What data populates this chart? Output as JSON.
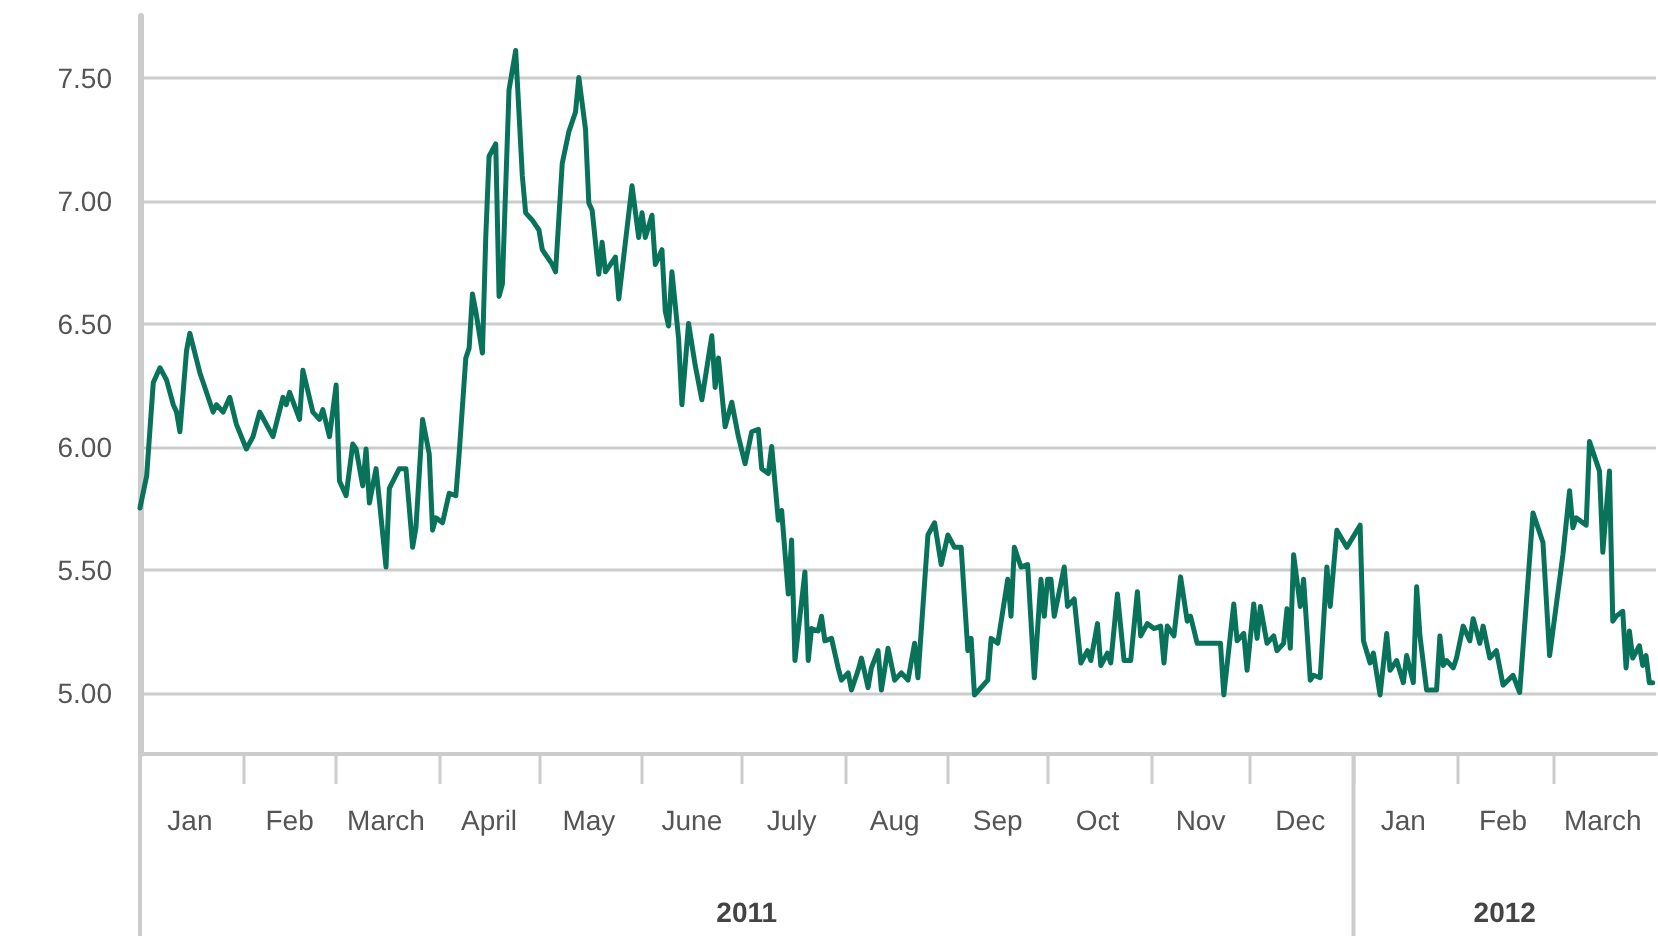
{
  "chart_data": {
    "type": "line",
    "marker": "none",
    "line_style": "solid",
    "grid": "y",
    "xlim": [
      "2011-01-01",
      "2012-04-01"
    ],
    "ylim": [
      4.75,
      7.75
    ],
    "yticks": [
      {
        "value": 5,
        "label": "5.00"
      },
      {
        "value": 5.5,
        "label": "5.50"
      },
      {
        "value": 6,
        "label": "6.00"
      },
      {
        "value": 6.5,
        "label": "6.50"
      },
      {
        "value": 7,
        "label": "7.00"
      },
      {
        "value": 7.5,
        "label": "7.50"
      }
    ],
    "xticks": [
      {
        "value": "2011-01-01",
        "label": null
      },
      {
        "value": "2011-02-01",
        "label": null
      },
      {
        "value": "2011-03-01",
        "label": null
      },
      {
        "value": "2011-04-01",
        "label": null
      },
      {
        "value": "2011-05-01",
        "label": null
      },
      {
        "value": "2011-06-01",
        "label": null
      },
      {
        "value": "2011-07-01",
        "label": null
      },
      {
        "value": "2011-08-01",
        "label": null
      },
      {
        "value": "2011-09-01",
        "label": null
      },
      {
        "value": "2011-10-01",
        "label": null
      },
      {
        "value": "2011-11-01",
        "label": null
      },
      {
        "value": "2011-12-01",
        "label": null
      },
      {
        "value": "2012-01-01",
        "label": null
      },
      {
        "value": "2012-02-01",
        "label": null
      },
      {
        "value": "2012-03-01",
        "label": null
      },
      {
        "value": "2011-01-16",
        "label": "Jan"
      },
      {
        "value": "2011-02-15",
        "label": "Feb"
      },
      {
        "value": "2011-03-16",
        "label": "March"
      },
      {
        "value": "2011-04-16",
        "label": "April"
      },
      {
        "value": "2011-05-16",
        "label": "May"
      },
      {
        "value": "2011-06-16",
        "label": "June"
      },
      {
        "value": "2011-07-16",
        "label": "July"
      },
      {
        "value": "2011-08-16",
        "label": "Aug"
      },
      {
        "value": "2011-09-16",
        "label": "Sep"
      },
      {
        "value": "2011-10-16",
        "label": "Oct"
      },
      {
        "value": "2011-11-16",
        "label": "Nov"
      },
      {
        "value": "2011-12-16",
        "label": "Dec"
      },
      {
        "value": "2012-01-16",
        "label": "Jan"
      },
      {
        "value": "2012-02-15",
        "label": "Feb"
      },
      {
        "value": "2012-03-16",
        "label": "March"
      }
    ],
    "annotations": [
      "2011",
      "2012"
    ],
    "x": [
      "2011-01-01",
      "2011-01-03",
      "2011-01-05",
      "2011-01-07",
      "2011-01-09",
      "2011-01-11",
      "2011-01-12",
      "2011-01-13",
      "2011-01-15",
      "2011-01-16",
      "2011-01-19",
      "2011-01-20",
      "2011-01-23",
      "2011-01-24",
      "2011-01-26",
      "2011-01-28",
      "2011-01-30",
      "2011-02-02",
      "2011-02-04",
      "2011-02-06",
      "2011-02-10",
      "2011-02-13",
      "2011-02-14",
      "2011-02-15",
      "2011-02-18",
      "2011-02-19",
      "2011-02-22",
      "2011-02-24",
      "2011-02-25",
      "2011-02-27",
      "2011-03-01",
      "2011-03-02",
      "2011-03-04",
      "2011-03-06",
      "2011-03-07",
      "2011-03-09",
      "2011-03-10",
      "2011-03-11",
      "2011-03-13",
      "2011-03-14",
      "2011-03-16",
      "2011-03-17",
      "2011-03-20",
      "2011-03-22",
      "2011-03-24",
      "2011-03-25",
      "2011-03-27",
      "2011-03-29",
      "2011-03-30",
      "2011-03-31",
      "2011-04-02",
      "2011-04-04",
      "2011-04-06",
      "2011-04-07",
      "2011-04-09",
      "2011-04-10",
      "2011-04-11",
      "2011-04-12",
      "2011-04-14",
      "2011-04-15",
      "2011-04-16",
      "2011-04-18",
      "2011-04-19",
      "2011-04-20",
      "2011-04-22",
      "2011-04-24",
      "2011-04-26",
      "2011-04-27",
      "2011-04-29",
      "2011-05-01",
      "2011-05-02",
      "2011-05-05",
      "2011-05-06",
      "2011-05-08",
      "2011-05-10",
      "2011-05-12",
      "2011-05-13",
      "2011-05-15",
      "2011-05-16",
      "2011-05-17",
      "2011-05-19",
      "2011-05-20",
      "2011-05-21",
      "2011-05-24",
      "2011-05-25",
      "2011-05-29",
      "2011-05-31",
      "2011-06-01",
      "2011-06-02",
      "2011-06-04",
      "2011-06-05",
      "2011-06-07",
      "2011-06-08",
      "2011-06-09",
      "2011-06-10",
      "2011-06-12",
      "2011-06-13",
      "2011-06-15",
      "2011-06-17",
      "2011-06-19",
      "2011-06-22",
      "2011-06-23",
      "2011-06-24",
      "2011-06-26",
      "2011-06-28",
      "2011-06-30",
      "2011-07-02",
      "2011-07-04",
      "2011-07-06",
      "2011-07-07",
      "2011-07-09",
      "2011-07-10",
      "2011-07-12",
      "2011-07-13",
      "2011-07-15",
      "2011-07-16",
      "2011-07-17",
      "2011-07-20",
      "2011-07-21",
      "2011-07-22",
      "2011-07-24",
      "2011-07-25",
      "2011-07-26",
      "2011-07-28",
      "2011-07-30",
      "2011-07-31",
      "2011-08-02",
      "2011-08-03",
      "2011-08-05",
      "2011-08-06",
      "2011-08-08",
      "2011-08-09",
      "2011-08-11",
      "2011-08-12",
      "2011-08-14",
      "2011-08-16",
      "2011-08-18",
      "2011-08-20",
      "2011-08-22",
      "2011-08-23",
      "2011-08-26",
      "2011-08-28",
      "2011-08-30",
      "2011-09-01",
      "2011-09-03",
      "2011-09-05",
      "2011-09-07",
      "2011-09-08",
      "2011-09-09",
      "2011-09-13",
      "2011-09-14",
      "2011-09-16",
      "2011-09-19",
      "2011-09-20",
      "2011-09-21",
      "2011-09-23",
      "2011-09-25",
      "2011-09-27",
      "2011-09-29",
      "2011-09-30",
      "2011-10-01",
      "2011-10-02",
      "2011-10-03",
      "2011-10-06",
      "2011-10-07",
      "2011-10-09",
      "2011-10-11",
      "2011-10-13",
      "2011-10-14",
      "2011-10-16",
      "2011-10-17",
      "2011-10-19",
      "2011-10-20",
      "2011-10-22",
      "2011-10-24",
      "2011-10-26",
      "2011-10-28",
      "2011-10-29",
      "2011-10-31",
      "2011-11-02",
      "2011-11-04",
      "2011-11-05",
      "2011-11-06",
      "2011-11-08",
      "2011-11-10",
      "2011-11-12",
      "2011-11-13",
      "2011-11-15",
      "2011-11-17",
      "2011-11-22",
      "2011-11-23",
      "2011-11-26",
      "2011-11-27",
      "2011-11-29",
      "2011-11-30",
      "2011-12-02",
      "2011-12-03",
      "2011-12-04",
      "2011-12-06",
      "2011-12-08",
      "2011-12-09",
      "2011-12-11",
      "2011-12-12",
      "2011-12-13",
      "2011-12-14",
      "2011-12-16",
      "2011-12-17",
      "2011-12-19",
      "2011-12-20",
      "2011-12-22",
      "2011-12-24",
      "2011-12-25",
      "2011-12-27",
      "2011-12-30",
      "2012-01-03",
      "2012-01-04",
      "2012-01-06",
      "2012-01-07",
      "2012-01-09",
      "2012-01-11",
      "2012-01-12",
      "2012-01-14",
      "2012-01-16",
      "2012-01-17",
      "2012-01-19",
      "2012-01-20",
      "2012-01-21",
      "2012-01-23",
      "2012-01-26",
      "2012-01-27",
      "2012-01-28",
      "2012-01-29",
      "2012-01-31",
      "2012-02-01",
      "2012-02-03",
      "2012-02-05",
      "2012-02-06",
      "2012-02-08",
      "2012-02-09",
      "2012-02-11",
      "2012-02-13",
      "2012-02-15",
      "2012-02-18",
      "2012-02-20",
      "2012-02-24",
      "2012-02-27",
      "2012-02-29",
      "2012-03-04",
      "2012-03-06",
      "2012-03-07",
      "2012-03-08",
      "2012-03-11",
      "2012-03-12",
      "2012-03-15",
      "2012-03-16",
      "2012-03-18",
      "2012-03-19",
      "2012-03-20",
      "2012-03-22",
      "2012-03-23",
      "2012-03-24",
      "2012-03-25",
      "2012-03-27",
      "2012-03-28",
      "2012-03-29",
      "2012-03-30",
      "2012-03-31"
    ],
    "series": [
      {
        "color": "#08735a",
        "values": [
          5.75,
          5.88,
          6.26,
          6.32,
          6.27,
          6.17,
          6.14,
          6.06,
          6.39,
          6.46,
          6.3,
          6.26,
          6.14,
          6.17,
          6.14,
          6.2,
          6.09,
          5.99,
          6.04,
          6.14,
          6.04,
          6.2,
          6.17,
          6.22,
          6.11,
          6.31,
          6.14,
          6.11,
          6.15,
          6.04,
          6.25,
          5.86,
          5.8,
          6.01,
          5.99,
          5.84,
          5.99,
          5.77,
          5.91,
          5.78,
          5.51,
          5.83,
          5.91,
          5.91,
          5.59,
          5.67,
          6.11,
          5.97,
          5.66,
          5.71,
          5.69,
          5.81,
          5.8,
          5.97,
          6.36,
          6.4,
          6.62,
          6.55,
          6.38,
          6.85,
          7.18,
          7.23,
          6.61,
          6.66,
          7.45,
          7.61,
          7.1,
          6.95,
          6.92,
          6.88,
          6.8,
          6.74,
          6.71,
          7.15,
          7.28,
          7.36,
          7.5,
          7.29,
          6.99,
          6.96,
          6.7,
          6.83,
          6.71,
          6.77,
          6.6,
          7.06,
          6.85,
          6.95,
          6.85,
          6.94,
          6.74,
          6.8,
          6.55,
          6.49,
          6.71,
          6.44,
          6.17,
          6.5,
          6.33,
          6.19,
          6.45,
          6.24,
          6.36,
          6.08,
          6.18,
          6.04,
          5.93,
          6.06,
          6.07,
          5.91,
          5.89,
          6.0,
          5.7,
          5.74,
          5.4,
          5.62,
          5.13,
          5.49,
          5.13,
          5.26,
          5.25,
          5.31,
          5.21,
          5.22,
          5.1,
          5.05,
          5.08,
          5.01,
          5.09,
          5.14,
          5.02,
          5.1,
          5.17,
          5.01,
          5.18,
          5.05,
          5.08,
          5.05,
          5.2,
          5.06,
          5.64,
          5.69,
          5.52,
          5.64,
          5.59,
          5.59,
          5.17,
          5.22,
          4.99,
          5.05,
          5.22,
          5.2,
          5.46,
          5.31,
          5.59,
          5.51,
          5.52,
          5.06,
          5.46,
          5.31,
          5.46,
          5.46,
          5.31,
          5.51,
          5.35,
          5.38,
          5.12,
          5.17,
          5.13,
          5.28,
          5.11,
          5.16,
          5.12,
          5.4,
          5.13,
          5.13,
          5.41,
          5.23,
          5.28,
          5.26,
          5.27,
          5.12,
          5.27,
          5.23,
          5.47,
          5.29,
          5.31,
          5.2,
          5.2,
          5.2,
          4.99,
          5.36,
          5.21,
          5.24,
          5.09,
          5.36,
          5.22,
          5.35,
          5.2,
          5.23,
          5.17,
          5.2,
          5.34,
          5.18,
          5.56,
          5.35,
          5.46,
          5.05,
          5.07,
          5.06,
          5.51,
          5.35,
          5.66,
          5.59,
          5.68,
          5.21,
          5.12,
          5.16,
          4.99,
          5.24,
          5.09,
          5.13,
          5.04,
          5.15,
          5.04,
          5.43,
          5.23,
          5.01,
          5.01,
          5.23,
          5.11,
          5.13,
          5.1,
          5.14,
          5.27,
          5.21,
          5.3,
          5.2,
          5.27,
          5.14,
          5.17,
          5.03,
          5.07,
          5.0,
          5.73,
          5.61,
          5.15,
          5.56,
          5.82,
          5.67,
          5.71,
          5.68,
          6.02,
          5.9,
          5.57,
          5.9,
          5.29,
          5.31,
          5.33,
          5.1,
          5.25,
          5.14,
          5.19,
          5.11,
          5.15,
          5.04,
          5.04
        ]
      }
    ]
  }
}
